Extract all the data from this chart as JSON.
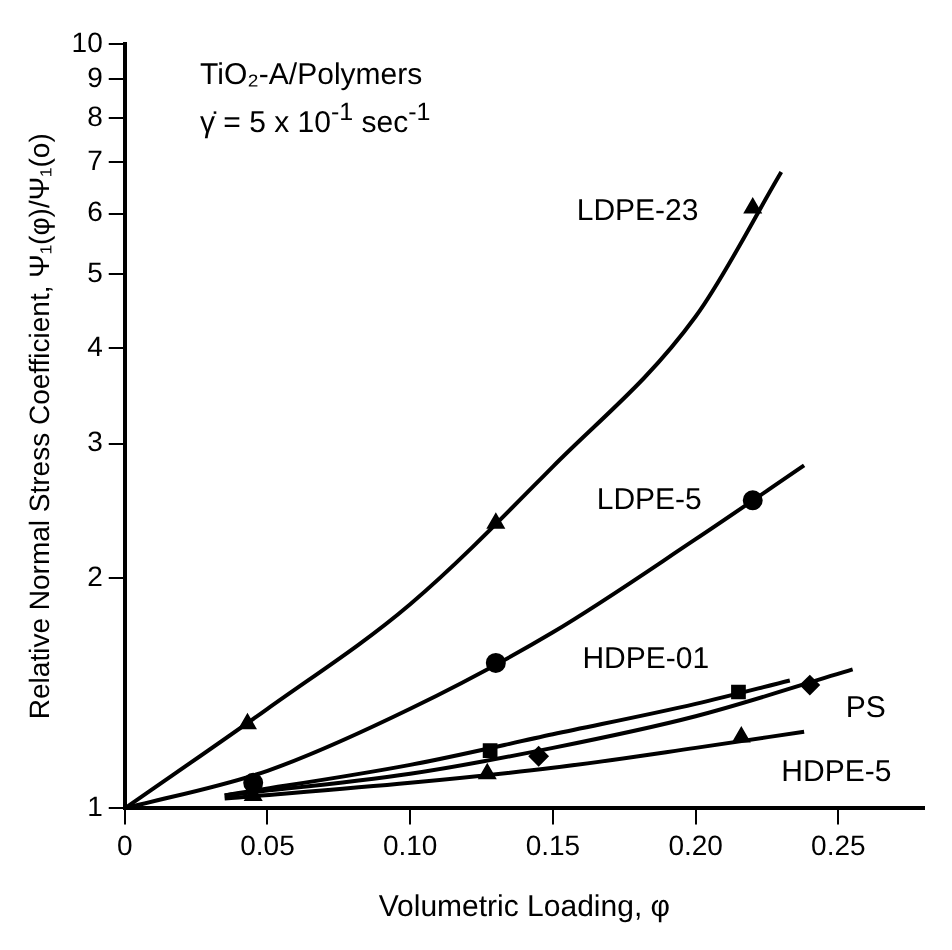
{
  "chart_data": {
    "type": "scatter",
    "xlabel": "Volumetric Loading, φ",
    "ylabel": "Relative Normal Stress Coefficient, Ψ₁(φ)/Ψ₁(o)",
    "annotations": [
      "TiO₂-A/Polymers",
      "γ̇ = 5 x 10$^{-1}$ sec$^{-1}$"
    ],
    "xlim": [
      0,
      0.28
    ],
    "xticks": [
      {
        "value": 0,
        "label": "0"
      },
      {
        "value": 0.05,
        "label": "0.05"
      },
      {
        "value": 0.1,
        "label": "0.10"
      },
      {
        "value": 0.15,
        "label": "0.15"
      },
      {
        "value": 0.2,
        "label": "0.20"
      },
      {
        "value": 0.25,
        "label": "0.25"
      }
    ],
    "ylim": [
      1,
      10
    ],
    "yticks": [
      1,
      2,
      3,
      4,
      5,
      6,
      7,
      8,
      9,
      10
    ],
    "log": "y",
    "grid": false,
    "legend": false,
    "series": [
      {
        "name": "LDPE-23",
        "marker": "triangle",
        "color": "#000000",
        "x": [
          0.043,
          0.13,
          0.22
        ],
        "values": [
          1.29,
          2.36,
          6.1
        ]
      },
      {
        "name": "LDPE-5",
        "marker": "circle",
        "color": "#000000",
        "x": [
          0.045,
          0.13,
          0.22
        ],
        "values": [
          1.08,
          1.55,
          2.53
        ]
      },
      {
        "name": "HDPE-01",
        "marker": "square",
        "color": "#000000",
        "x": [
          0.128,
          0.215
        ],
        "values": [
          1.19,
          1.42
        ]
      },
      {
        "name": "PS",
        "marker": "diamond",
        "color": "#000000",
        "x": [
          0.145,
          0.24
        ],
        "values": [
          1.17,
          1.45
        ]
      },
      {
        "name": "HDPE-5",
        "marker": "triangle",
        "color": "#000000",
        "x": [
          0.045,
          0.127,
          0.216
        ],
        "values": [
          1.04,
          1.11,
          1.24
        ]
      },
      {
        "type": "line",
        "marker": "none",
        "color": "#000000",
        "x": [
          0,
          0.05,
          0.1,
          0.15,
          0.2,
          0.23
        ],
        "values": [
          1,
          1.35,
          1.85,
          2.8,
          4.4,
          6.8
        ]
      },
      {
        "type": "line",
        "marker": "none",
        "color": "#000000",
        "x": [
          0,
          0.05,
          0.1,
          0.15,
          0.2,
          0.238
        ],
        "values": [
          1,
          1.12,
          1.35,
          1.7,
          2.25,
          2.81
        ]
      },
      {
        "type": "line",
        "marker": "none",
        "color": "#000000",
        "x": [
          0.035,
          0.1,
          0.15,
          0.2,
          0.233
        ],
        "values": [
          1.04,
          1.14,
          1.25,
          1.37,
          1.47
        ]
      },
      {
        "type": "line",
        "marker": "none",
        "color": "#000000",
        "x": [
          0.035,
          0.1,
          0.15,
          0.2,
          0.255
        ],
        "values": [
          1.04,
          1.11,
          1.2,
          1.32,
          1.52
        ]
      },
      {
        "type": "line",
        "marker": "none",
        "color": "#000000",
        "x": [
          0.035,
          0.1,
          0.15,
          0.2,
          0.238
        ],
        "values": [
          1.03,
          1.08,
          1.13,
          1.2,
          1.26
        ]
      }
    ]
  }
}
